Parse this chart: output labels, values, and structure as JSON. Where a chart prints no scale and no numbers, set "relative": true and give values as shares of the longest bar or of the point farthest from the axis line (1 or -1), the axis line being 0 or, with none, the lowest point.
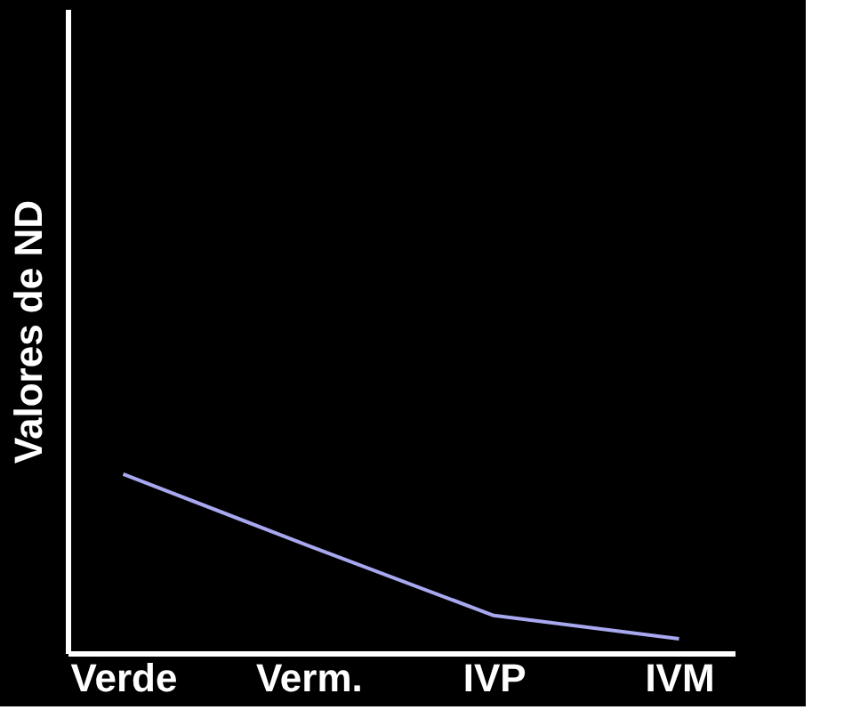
{
  "chart_data": {
    "type": "line",
    "ylabel": "Valores de ND",
    "categories": [
      "Verde",
      "Verm.",
      "IVP",
      "IVM"
    ],
    "relative": true,
    "series": [
      {
        "color": "#a8a8f0",
        "values": [
          1,
          0.6,
          0.21,
          0.08
        ]
      }
    ],
    "grid": false,
    "legend": false,
    "marker": "none"
  }
}
